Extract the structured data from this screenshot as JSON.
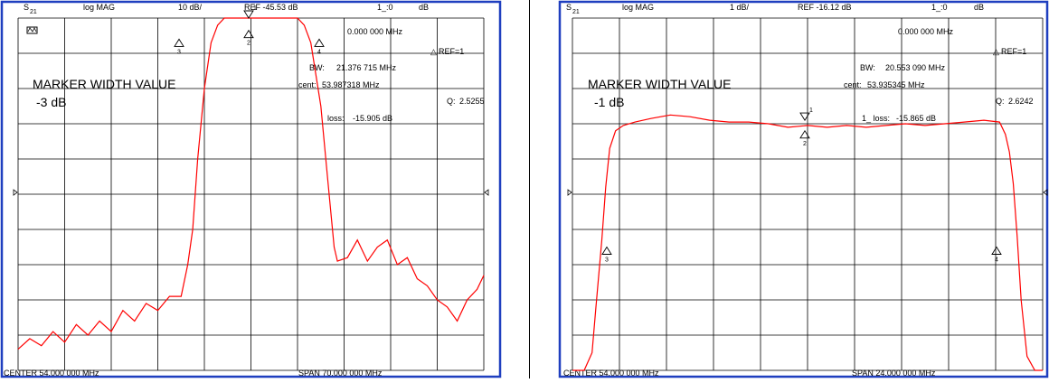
{
  "colors": {
    "frame": "#1f3fbf",
    "trace": "#ff0000",
    "grid": "#000000"
  },
  "chart_data": [
    {
      "type": "line",
      "header": {
        "param": "S",
        "param_sub": "21",
        "format": "log MAG",
        "scale": "10 dB/",
        "ref": "REF -45.53 dB",
        "marker_readout": "1_:0",
        "marker_unit": "dB"
      },
      "marker_freq": "0.000 000 MHz",
      "ref_label": "REF=1",
      "bw": {
        "label": "BW:",
        "value": "21.376 715 MHz"
      },
      "cent": {
        "label": "cent:",
        "value": "53.987318 MHz"
      },
      "q": {
        "label": "Q:",
        "value": "2.5255"
      },
      "loss": {
        "label": "loss:",
        "value": "-15.905 dB"
      },
      "annotation_title": "MARKER WIDTH VALUE",
      "annotation_value": "-3 dB",
      "corner_icon": "bandwidth-icon",
      "footer": {
        "center": "CENTER  54.000 000 MHz",
        "span": "SPAN  70.000 000 MHz"
      },
      "x_axis_mhz": [
        19,
        89
      ],
      "y_divisions": 10,
      "markers": [
        "1",
        "2",
        "3",
        "4"
      ],
      "series": [
        {
          "x": [
            19.0,
            20.75,
            22.5,
            24.25,
            26.0,
            27.75,
            29.5,
            31.25,
            33.0,
            34.75,
            36.5,
            38.25,
            40.0,
            41.75,
            43.5,
            44.5,
            45.25,
            46.0,
            47.0,
            48.0,
            49.0,
            50.0,
            54.0,
            58.0,
            61.0,
            62.0,
            63.0,
            64.5,
            65.5,
            66.5,
            67.0,
            68.5,
            70.0,
            71.5,
            73.0,
            74.5,
            76.0,
            77.5,
            79.0,
            80.5,
            82.0,
            83.5,
            85.0,
            86.5,
            88.0,
            89.0
          ],
          "y_div_from_top": [
            9.4,
            9.1,
            9.3,
            8.9,
            9.2,
            8.7,
            9.0,
            8.6,
            8.9,
            8.3,
            8.6,
            8.1,
            8.3,
            7.9,
            7.9,
            7.0,
            6.0,
            4.0,
            2.0,
            0.7,
            0.2,
            0.0,
            0.0,
            0.0,
            0.0,
            0.2,
            0.7,
            2.5,
            4.5,
            6.5,
            6.9,
            6.8,
            6.3,
            6.9,
            6.5,
            6.3,
            7.0,
            6.8,
            7.4,
            7.6,
            8.0,
            8.2,
            8.6,
            8.0,
            7.7,
            7.3
          ]
        }
      ]
    },
    {
      "type": "line",
      "header": {
        "param": "S",
        "param_sub": "21",
        "format": "log MAG",
        "scale": "1 dB/",
        "ref": "REF -16.12 dB",
        "marker_readout": "1_:0",
        "marker_unit": "dB"
      },
      "marker_freq": "0.000 000 MHz",
      "ref_label": "REF=1",
      "bw": {
        "label": "BW:",
        "value": "20.553 090 MHz"
      },
      "cent": {
        "label": "cent:",
        "value": "53.935345 MHz"
      },
      "q": {
        "label": "Q:",
        "value": "2.6242"
      },
      "loss": {
        "label": "1_ loss:",
        "value": "-15.865 dB"
      },
      "annotation_title": "MARKER WIDTH VALUE",
      "annotation_value": "-1 dB",
      "footer": {
        "center": "CENTER  54.000 000 MHz",
        "span": "SPAN  24.000 000 MHz"
      },
      "x_axis_mhz": [
        42,
        66
      ],
      "y_divisions": 10,
      "markers": [
        "1",
        "2",
        "3",
        "4"
      ],
      "series": [
        {
          "x": [
            42.0,
            42.6,
            43.0,
            43.2,
            43.5,
            43.7,
            43.9,
            44.2,
            44.6,
            45.2,
            46.0,
            47.0,
            48.0,
            49.0,
            50.0,
            51.0,
            52.0,
            53.0,
            54.0,
            55.0,
            56.0,
            57.0,
            58.0,
            59.0,
            60.0,
            61.0,
            62.0,
            63.0,
            63.8,
            64.1,
            64.3,
            64.5,
            64.7,
            64.9,
            65.2,
            65.6,
            66.0
          ],
          "y_div_from_top": [
            10.0,
            10.0,
            9.5,
            8.2,
            6.3,
            4.8,
            3.7,
            3.2,
            3.05,
            2.95,
            2.85,
            2.75,
            2.8,
            2.9,
            2.95,
            2.95,
            3.0,
            3.1,
            3.05,
            3.1,
            3.05,
            3.1,
            3.05,
            3.0,
            3.05,
            3.0,
            2.95,
            2.9,
            2.95,
            3.3,
            3.8,
            4.7,
            6.2,
            8.0,
            9.6,
            10.0,
            10.0
          ]
        }
      ]
    }
  ]
}
